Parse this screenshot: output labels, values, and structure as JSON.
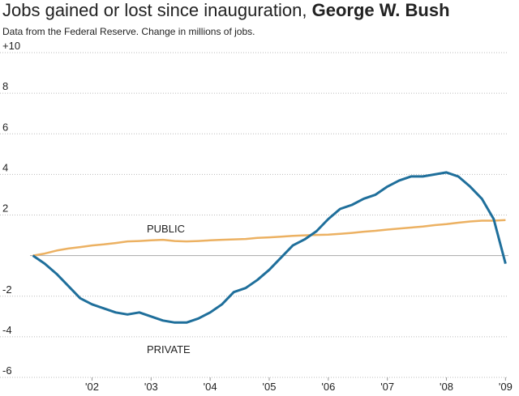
{
  "chart_data": {
    "type": "line",
    "title": "Jobs gained or lost since inauguration,",
    "title_bold": "George W. Bush",
    "subtitle": "Data from the Federal Reserve. Change in millions of jobs.",
    "x": [
      2001.0,
      2001.2,
      2001.4,
      2001.6,
      2001.8,
      2002.0,
      2002.2,
      2002.4,
      2002.6,
      2002.8,
      2003.0,
      2003.2,
      2003.4,
      2003.6,
      2003.8,
      2004.0,
      2004.2,
      2004.4,
      2004.6,
      2004.8,
      2005.0,
      2005.2,
      2005.4,
      2005.6,
      2005.8,
      2006.0,
      2006.2,
      2006.4,
      2006.6,
      2006.8,
      2007.0,
      2007.2,
      2007.4,
      2007.6,
      2007.8,
      2008.0,
      2008.2,
      2008.4,
      2008.6,
      2008.8,
      2009.0
    ],
    "series": [
      {
        "name": "PUBLIC",
        "color": "#ecb162",
        "values": [
          0,
          0.1,
          0.25,
          0.35,
          0.42,
          0.5,
          0.55,
          0.62,
          0.7,
          0.72,
          0.75,
          0.78,
          0.72,
          0.7,
          0.72,
          0.75,
          0.78,
          0.8,
          0.82,
          0.87,
          0.9,
          0.93,
          0.97,
          1.0,
          1.02,
          1.03,
          1.07,
          1.12,
          1.18,
          1.22,
          1.28,
          1.33,
          1.38,
          1.43,
          1.5,
          1.55,
          1.62,
          1.68,
          1.72,
          1.72,
          1.75
        ]
      },
      {
        "name": "PRIVATE",
        "color": "#1f6f9b",
        "values": [
          0,
          -0.4,
          -0.9,
          -1.5,
          -2.1,
          -2.4,
          -2.6,
          -2.8,
          -2.9,
          -2.8,
          -3.0,
          -3.2,
          -3.3,
          -3.3,
          -3.1,
          -2.8,
          -2.4,
          -1.8,
          -1.6,
          -1.2,
          -0.7,
          -0.1,
          0.5,
          0.8,
          1.2,
          1.8,
          2.3,
          2.5,
          2.8,
          3.0,
          3.4,
          3.7,
          3.9,
          3.9,
          4.0,
          4.1,
          3.9,
          3.4,
          2.8,
          1.8,
          -0.4
        ]
      }
    ],
    "xlim": [
      2000.95,
      2009.05
    ],
    "xticks": [
      {
        "value": 2002,
        "label": "'02"
      },
      {
        "value": 2003,
        "label": "'03"
      },
      {
        "value": 2004,
        "label": "'04"
      },
      {
        "value": 2005,
        "label": "'05"
      },
      {
        "value": 2006,
        "label": "'06"
      },
      {
        "value": 2007,
        "label": "'07"
      },
      {
        "value": 2008,
        "label": "'08"
      },
      {
        "value": 2009,
        "label": "'09"
      }
    ],
    "ylim": [
      -6,
      10
    ],
    "yticks": [
      -6,
      -4,
      -2,
      2,
      4,
      6,
      8,
      {
        "value": 10,
        "label": "+10"
      }
    ],
    "grid": true
  }
}
